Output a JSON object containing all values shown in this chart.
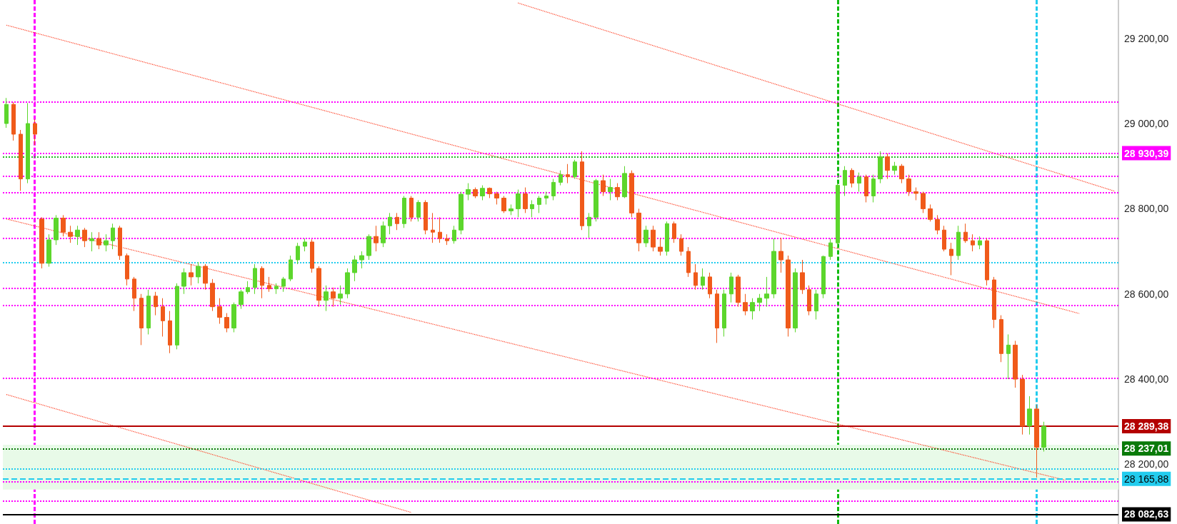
{
  "chart_data": {
    "type": "candlestick",
    "categories": [
      null,
      null,
      null,
      null,
      null,
      null,
      null,
      null,
      null,
      null,
      null,
      null,
      null,
      null,
      null,
      null,
      null,
      null,
      null,
      null,
      null,
      null,
      null,
      null,
      null,
      null,
      null,
      null,
      null,
      null,
      null,
      null,
      null,
      null,
      null,
      null,
      null,
      null,
      null,
      null,
      null,
      null,
      null,
      null,
      null,
      null,
      null,
      null,
      null,
      null,
      null,
      null,
      null,
      null,
      null,
      null,
      null,
      null,
      null,
      null,
      null,
      null,
      null,
      null,
      null,
      null,
      null,
      null,
      null,
      null,
      null,
      null,
      null,
      null,
      null,
      null,
      null,
      null,
      null,
      null,
      null,
      null,
      null,
      null,
      null,
      null,
      null,
      null,
      null,
      null,
      null,
      null,
      null,
      null,
      null,
      null,
      null,
      null,
      null,
      null,
      null,
      null,
      null,
      null,
      null,
      null,
      null,
      null,
      null,
      null,
      null,
      null,
      null,
      null,
      null,
      null,
      null,
      null,
      null,
      null,
      null,
      null,
      null,
      null,
      null,
      null,
      null,
      null,
      null,
      null,
      null,
      null,
      null,
      null,
      null,
      null,
      null,
      null,
      null,
      null,
      null,
      null,
      null,
      null,
      null,
      null,
      null,
      null,
      null,
      null,
      null,
      null,
      null,
      null,
      null,
      null,
      null
    ],
    "ohlc": [
      [
        29000,
        29060,
        28990,
        29045
      ],
      [
        29045,
        29050,
        28960,
        28975
      ],
      [
        28975,
        28985,
        28842,
        28870
      ],
      [
        28870,
        29048,
        28860,
        29000
      ],
      [
        29000,
        29010,
        28950,
        28975
      ],
      [
        28776,
        28780,
        28660,
        28672
      ],
      [
        28672,
        28740,
        28664,
        28727
      ],
      [
        28727,
        28785,
        28715,
        28778
      ],
      [
        28778,
        28785,
        28735,
        28745
      ],
      [
        28745,
        28760,
        28720,
        28735
      ],
      [
        28735,
        28760,
        28715,
        28750
      ],
      [
        28750,
        28755,
        28710,
        28725
      ],
      [
        28725,
        28745,
        28700,
        28730
      ],
      [
        28730,
        28745,
        28705,
        28715
      ],
      [
        28715,
        28740,
        28700,
        28725
      ],
      [
        28725,
        28765,
        28705,
        28755
      ],
      [
        28755,
        28760,
        28680,
        28690
      ],
      [
        28690,
        28695,
        28620,
        28635
      ],
      [
        28635,
        28640,
        28560,
        28590
      ],
      [
        28590,
        28600,
        28480,
        28520
      ],
      [
        28520,
        28610,
        28505,
        28595
      ],
      [
        28595,
        28605,
        28550,
        28570
      ],
      [
        28570,
        28590,
        28500,
        28537
      ],
      [
        28537,
        28560,
        28461,
        28480
      ],
      [
        28480,
        28625,
        28470,
        28618
      ],
      [
        28618,
        28660,
        28600,
        28650
      ],
      [
        28650,
        28670,
        28620,
        28640
      ],
      [
        28640,
        28675,
        28625,
        28665
      ],
      [
        28665,
        28670,
        28610,
        28625
      ],
      [
        28625,
        28635,
        28560,
        28570
      ],
      [
        28570,
        28590,
        28530,
        28545
      ],
      [
        28545,
        28555,
        28510,
        28520
      ],
      [
        28520,
        28580,
        28510,
        28575
      ],
      [
        28575,
        28610,
        28565,
        28605
      ],
      [
        28605,
        28630,
        28600,
        28615
      ],
      [
        28615,
        28670,
        28600,
        28660
      ],
      [
        28660,
        28665,
        28590,
        28620
      ],
      [
        28620,
        28640,
        28605,
        28612
      ],
      [
        28612,
        28625,
        28600,
        28618
      ],
      [
        28618,
        28640,
        28605,
        28635
      ],
      [
        28635,
        28690,
        28630,
        28680
      ],
      [
        28680,
        28720,
        28670,
        28712
      ],
      [
        28712,
        28730,
        28700,
        28722
      ],
      [
        28722,
        28728,
        28650,
        28660
      ],
      [
        28660,
        28665,
        28570,
        28585
      ],
      [
        28585,
        28620,
        28560,
        28605
      ],
      [
        28605,
        28615,
        28570,
        28590
      ],
      [
        28590,
        28620,
        28575,
        28600
      ],
      [
        28600,
        28660,
        28590,
        28650
      ],
      [
        28650,
        28690,
        28630,
        28680
      ],
      [
        28680,
        28700,
        28660,
        28690
      ],
      [
        28690,
        28740,
        28680,
        28735
      ],
      [
        28735,
        28760,
        28700,
        28720
      ],
      [
        28720,
        28770,
        28710,
        28760
      ],
      [
        28760,
        28790,
        28740,
        28780
      ],
      [
        28780,
        28790,
        28750,
        28765
      ],
      [
        28765,
        28830,
        28755,
        28825
      ],
      [
        28825,
        28830,
        28770,
        28780
      ],
      [
        28780,
        28820,
        28770,
        28815
      ],
      [
        28815,
        28820,
        28740,
        28750
      ],
      [
        28750,
        28790,
        28720,
        28745
      ],
      [
        28745,
        28780,
        28720,
        28730
      ],
      [
        28730,
        28740,
        28715,
        28725
      ],
      [
        28725,
        28760,
        28718,
        28750
      ],
      [
        28750,
        28840,
        28740,
        28834
      ],
      [
        28834,
        28860,
        28820,
        28845
      ],
      [
        28845,
        28850,
        28825,
        28830
      ],
      [
        28830,
        28855,
        28820,
        28848
      ],
      [
        28848,
        28850,
        28825,
        28835
      ],
      [
        28835,
        28840,
        28810,
        28825
      ],
      [
        28825,
        28830,
        28790,
        28795
      ],
      [
        28795,
        28810,
        28785,
        28800
      ],
      [
        28800,
        28845,
        28780,
        28835
      ],
      [
        28835,
        28850,
        28790,
        28800
      ],
      [
        28800,
        28820,
        28780,
        28810
      ],
      [
        28810,
        28830,
        28790,
        28825
      ],
      [
        28825,
        28840,
        28810,
        28830
      ],
      [
        28830,
        28870,
        28820,
        28862
      ],
      [
        28862,
        28890,
        28855,
        28880
      ],
      [
        28880,
        28905,
        28860,
        28875
      ],
      [
        28875,
        28915,
        28870,
        28910
      ],
      [
        28910,
        28935,
        28750,
        28760
      ],
      [
        28760,
        28790,
        28732,
        28780
      ],
      [
        28780,
        28870,
        28770,
        28866
      ],
      [
        28866,
        28880,
        28830,
        28840
      ],
      [
        28840,
        28870,
        28820,
        28850
      ],
      [
        28850,
        28860,
        28820,
        28828
      ],
      [
        28828,
        28900,
        28825,
        28883
      ],
      [
        28883,
        28890,
        28780,
        28790
      ],
      [
        28790,
        28800,
        28700,
        28720
      ],
      [
        28720,
        28760,
        28710,
        28750
      ],
      [
        28750,
        28760,
        28700,
        28710
      ],
      [
        28710,
        28730,
        28690,
        28700
      ],
      [
        28700,
        28770,
        28690,
        28765
      ],
      [
        28765,
        28770,
        28720,
        28730
      ],
      [
        28730,
        28740,
        28690,
        28700
      ],
      [
        28700,
        28710,
        28640,
        28650
      ],
      [
        28650,
        28670,
        28610,
        28620
      ],
      [
        28620,
        28660,
        28610,
        28640
      ],
      [
        28640,
        28650,
        28590,
        28600
      ],
      [
        28600,
        28610,
        28485,
        28520
      ],
      [
        28520,
        28610,
        28500,
        28600
      ],
      [
        28600,
        28650,
        28580,
        28640
      ],
      [
        28640,
        28645,
        28570,
        28580
      ],
      [
        28580,
        28600,
        28550,
        28560
      ],
      [
        28560,
        28590,
        28540,
        28580
      ],
      [
        28580,
        28600,
        28560,
        28590
      ],
      [
        28590,
        28640,
        28570,
        28600
      ],
      [
        28600,
        28730,
        28590,
        28700
      ],
      [
        28700,
        28732,
        28650,
        28680
      ],
      [
        28680,
        28690,
        28500,
        28520
      ],
      [
        28520,
        28660,
        28510,
        28650
      ],
      [
        28650,
        28680,
        28600,
        28610
      ],
      [
        28610,
        28620,
        28550,
        28560
      ],
      [
        28560,
        28610,
        28540,
        28600
      ],
      [
        28600,
        28690,
        28590,
        28688
      ],
      [
        28688,
        28730,
        28680,
        28720
      ],
      [
        28720,
        28860,
        28710,
        28855
      ],
      [
        28855,
        28900,
        28830,
        28890
      ],
      [
        28890,
        28895,
        28850,
        28860
      ],
      [
        28860,
        28885,
        28840,
        28875
      ],
      [
        28875,
        28880,
        28815,
        28830
      ],
      [
        28830,
        28880,
        28815,
        28870
      ],
      [
        28870,
        28935,
        28860,
        28922
      ],
      [
        28922,
        28930,
        28870,
        28890
      ],
      [
        28890,
        28910,
        28880,
        28900
      ],
      [
        28900,
        28905,
        28860,
        28870
      ],
      [
        28870,
        28880,
        28830,
        28840
      ],
      [
        28840,
        28850,
        28820,
        28836
      ],
      [
        28836,
        28840,
        28790,
        28800
      ],
      [
        28800,
        28810,
        28770,
        28775
      ],
      [
        28775,
        28785,
        28740,
        28750
      ],
      [
        28750,
        28760,
        28700,
        28705
      ],
      [
        28705,
        28720,
        28644,
        28690
      ],
      [
        28690,
        28760,
        28680,
        28745
      ],
      [
        28745,
        28765,
        28720,
        28725
      ],
      [
        28725,
        28740,
        28700,
        28715
      ],
      [
        28715,
        28735,
        28705,
        28725
      ],
      [
        28725,
        28730,
        28620,
        28633
      ],
      [
        28633,
        28640,
        28520,
        28540
      ],
      [
        28540,
        28550,
        28440,
        28460
      ],
      [
        28460,
        28505,
        28400,
        28480
      ],
      [
        28480,
        28490,
        28380,
        28400
      ],
      [
        28400,
        28410,
        28270,
        28290
      ],
      [
        28290,
        28360,
        28270,
        28330
      ],
      [
        28330,
        28340,
        28169,
        28240
      ],
      [
        28240,
        28300,
        28230,
        28289.38
      ],
      null,
      null,
      null,
      null,
      null,
      null,
      null,
      null,
      null,
      null
    ],
    "colors": [
      "#5cd62c",
      "#f05a1a",
      "#f05a1a",
      "#5cd62c",
      "#f05a1a",
      "#f05a1a",
      "#5cd62c",
      "#5cd62c",
      "#f05a1a",
      "#f05a1a",
      "#5cd62c",
      "#f05a1a",
      "#5cd62c",
      "#f05a1a",
      "#5cd62c",
      "#5cd62c",
      "#f05a1a",
      "#f05a1a",
      "#f05a1a",
      "#f05a1a",
      "#5cd62c",
      "#f05a1a",
      "#f05a1a",
      "#f05a1a",
      "#5cd62c",
      "#5cd62c",
      "#f05a1a",
      "#5cd62c",
      "#f05a1a",
      "#f05a1a",
      "#f05a1a",
      "#f05a1a",
      "#5cd62c",
      "#5cd62c",
      "#5cd62c",
      "#5cd62c",
      "#f05a1a",
      "#f05a1a",
      "#5cd62c",
      "#5cd62c",
      "#5cd62c",
      "#5cd62c",
      "#5cd62c",
      "#f05a1a",
      "#f05a1a",
      "#5cd62c",
      "#f05a1a",
      "#5cd62c",
      "#5cd62c",
      "#5cd62c",
      "#5cd62c",
      "#5cd62c",
      "#f05a1a",
      "#5cd62c",
      "#5cd62c",
      "#f05a1a",
      "#5cd62c",
      "#f05a1a",
      "#5cd62c",
      "#f05a1a",
      "#f05a1a",
      "#f05a1a",
      "#f05a1a",
      "#5cd62c",
      "#5cd62c",
      "#5cd62c",
      "#f05a1a",
      "#5cd62c",
      "#f05a1a",
      "#f05a1a",
      "#f05a1a",
      "#5cd62c",
      "#5cd62c",
      "#f05a1a",
      "#5cd62c",
      "#5cd62c",
      "#5cd62c",
      "#5cd62c",
      "#5cd62c",
      "#f05a1a",
      "#5cd62c",
      "#f05a1a",
      "#5cd62c",
      "#5cd62c",
      "#f05a1a",
      "#5cd62c",
      "#f05a1a",
      "#5cd62c",
      "#f05a1a",
      "#f05a1a",
      "#5cd62c",
      "#f05a1a",
      "#f05a1a",
      "#5cd62c",
      "#f05a1a",
      "#f05a1a",
      "#f05a1a",
      "#f05a1a",
      "#5cd62c",
      "#f05a1a",
      "#f05a1a",
      "#5cd62c",
      "#5cd62c",
      "#f05a1a",
      "#f05a1a",
      "#5cd62c",
      "#5cd62c",
      "#5cd62c",
      "#5cd62c",
      "#f05a1a",
      "#f05a1a",
      "#5cd62c",
      "#f05a1a",
      "#f05a1a",
      "#5cd62c",
      "#5cd62c",
      "#5cd62c",
      "#5cd62c",
      "#5cd62c",
      "#f05a1a",
      "#5cd62c",
      "#f05a1a",
      "#5cd62c",
      "#5cd62c",
      "#f05a1a",
      "#5cd62c",
      "#f05a1a",
      "#f05a1a",
      "#f05a1a",
      "#f05a1a",
      "#f05a1a",
      "#f05a1a",
      "#f05a1a",
      "#f05a1a",
      "#5cd62c",
      "#f05a1a",
      "#f05a1a",
      "#5cd62c",
      "#f05a1a",
      "#f05a1a",
      "#f05a1a",
      "#5cd62c",
      "#f05a1a",
      "#f05a1a",
      "#5cd62c",
      "#f05a1a",
      "#5cd62c",
      null,
      null,
      null,
      null,
      null,
      null,
      null,
      null,
      null,
      null
    ],
    "ylim": [
      28060,
      29290
    ],
    "yticks": [
      {
        "value": 28200,
        "label": "28 200,00"
      },
      {
        "value": 28400,
        "label": "28 400,00"
      },
      {
        "value": 28600,
        "label": "28 600,00"
      },
      {
        "value": 28800,
        "label": "28 800,00"
      },
      {
        "value": 29000,
        "label": "29 000,00"
      },
      {
        "value": 29200,
        "label": "29 200,00"
      }
    ],
    "tick_labels": "y",
    "grid": false,
    "series": [
      {
        "type": "line",
        "color": "#ff3b1f",
        "line_style": "dotted",
        "values": [
          null,
          null,
          null,
          null,
          null,
          null,
          null,
          null,
          null,
          null,
          null,
          null,
          null,
          null,
          null,
          null,
          null,
          null,
          null,
          null,
          null,
          null,
          null,
          null,
          null,
          null,
          null,
          null,
          null,
          null,
          null,
          null,
          null,
          null,
          null,
          null,
          null,
          null,
          null,
          null,
          null,
          null,
          null,
          null,
          null,
          null,
          null,
          null,
          null,
          null,
          null,
          null,
          null,
          null,
          null,
          null,
          null,
          null,
          null,
          null,
          null,
          null,
          null,
          null,
          null,
          null,
          null,
          null,
          null,
          null,
          null,
          null,
          29283,
          null,
          null,
          null,
          null,
          null,
          null,
          null,
          null,
          null,
          null,
          null,
          null,
          null,
          null,
          null,
          null,
          null,
          null,
          null,
          null,
          null,
          null,
          null,
          null,
          null,
          null,
          null,
          null,
          null,
          null,
          null,
          null,
          null,
          null,
          null,
          null,
          null,
          null,
          null,
          null,
          null,
          null,
          null,
          null,
          null,
          null,
          null,
          null,
          null,
          null,
          null,
          null,
          null,
          null,
          null,
          null,
          null,
          null,
          null,
          null,
          null,
          null,
          null,
          null,
          null,
          null,
          null,
          null,
          null,
          null,
          null,
          null,
          null,
          null,
          null,
          null,
          null,
          null,
          null,
          null,
          null,
          null,
          null,
          28841
        ]
      },
      {
        "type": "line",
        "color": "#ff3b1f",
        "line_style": "dotted",
        "values": [
          29231,
          null,
          null,
          null,
          null,
          null,
          null,
          null,
          null,
          null,
          null,
          null,
          null,
          null,
          null,
          null,
          null,
          null,
          null,
          null,
          null,
          null,
          null,
          null,
          null,
          null,
          null,
          null,
          null,
          null,
          null,
          null,
          null,
          null,
          null,
          null,
          null,
          null,
          null,
          null,
          null,
          null,
          null,
          null,
          null,
          null,
          null,
          null,
          null,
          null,
          null,
          null,
          null,
          null,
          null,
          null,
          null,
          null,
          null,
          null,
          null,
          null,
          null,
          null,
          null,
          null,
          null,
          null,
          null,
          null,
          null,
          null,
          null,
          null,
          null,
          null,
          null,
          null,
          null,
          null,
          null,
          null,
          null,
          null,
          null,
          null,
          null,
          null,
          null,
          null,
          null,
          null,
          null,
          null,
          null,
          null,
          null,
          null,
          null,
          null,
          null,
          null,
          null,
          null,
          null,
          null,
          null,
          null,
          null,
          null,
          null,
          null,
          null,
          null,
          null,
          null,
          null,
          null,
          null,
          null,
          null,
          null,
          null,
          null,
          null,
          null,
          null,
          null,
          null,
          null,
          null,
          null,
          null,
          null,
          null,
          null,
          null,
          null,
          null,
          null,
          null,
          null,
          null,
          null,
          null,
          null,
          null,
          null,
          null,
          null,
          null,
          28554,
          null,
          null,
          null,
          null,
          null
        ]
      },
      {
        "type": "line",
        "color": "#ff3b1f",
        "line_style": "dotted",
        "values": [
          28776,
          null,
          null,
          null,
          null,
          null,
          null,
          null,
          null,
          null,
          null,
          null,
          null,
          null,
          null,
          null,
          null,
          null,
          null,
          null,
          null,
          null,
          null,
          null,
          null,
          null,
          null,
          null,
          null,
          null,
          null,
          null,
          null,
          null,
          null,
          null,
          null,
          null,
          null,
          null,
          null,
          null,
          null,
          null,
          null,
          null,
          null,
          null,
          null,
          null,
          null,
          null,
          null,
          null,
          null,
          null,
          null,
          null,
          null,
          null,
          null,
          null,
          null,
          null,
          null,
          null,
          null,
          null,
          null,
          null,
          null,
          null,
          null,
          null,
          null,
          null,
          null,
          null,
          null,
          null,
          null,
          null,
          null,
          null,
          null,
          null,
          null,
          null,
          null,
          null,
          null,
          null,
          null,
          null,
          null,
          null,
          null,
          null,
          null,
          null,
          null,
          null,
          null,
          null,
          null,
          null,
          null,
          null,
          null,
          null,
          null,
          null,
          null,
          null,
          null,
          null,
          null,
          null,
          null,
          null,
          null,
          null,
          null,
          null,
          null,
          null,
          null,
          null,
          null,
          null,
          null,
          null,
          null,
          null,
          null,
          null,
          null,
          null,
          null,
          null,
          null,
          null,
          null,
          null,
          null,
          null,
          null,
          null,
          null,
          28163,
          null,
          null,
          null,
          null,
          null,
          null,
          null
        ]
      },
      {
        "type": "line",
        "color": "#ff3b1f",
        "line_style": "dotted",
        "values": [
          28364,
          null,
          null,
          null,
          null,
          null,
          null,
          null,
          null,
          null,
          null,
          null,
          null,
          null,
          null,
          null,
          null,
          null,
          null,
          null,
          null,
          null,
          null,
          null,
          null,
          null,
          null,
          null,
          null,
          null,
          null,
          null,
          null,
          null,
          null,
          null,
          null,
          null,
          null,
          null,
          null,
          null,
          null,
          null,
          null,
          null,
          null,
          null,
          null,
          null,
          null,
          null,
          null,
          null,
          null,
          null,
          null,
          28087,
          null,
          null,
          null,
          null,
          null,
          null,
          null,
          null,
          null,
          null,
          null,
          null,
          null,
          null,
          null,
          null,
          null,
          null,
          null,
          null,
          null,
          null,
          null,
          null,
          null,
          null,
          null,
          null,
          null,
          null,
          null,
          null,
          null,
          null,
          null,
          null,
          null,
          null,
          null,
          null,
          null,
          null,
          null,
          null,
          null,
          null,
          null,
          null,
          null,
          null,
          null,
          null,
          null,
          null,
          null,
          null,
          null,
          null,
          null,
          null,
          null,
          null,
          null,
          null,
          null,
          null,
          null,
          null,
          null,
          null,
          null,
          null,
          null,
          null,
          null,
          null,
          null,
          null,
          null,
          null,
          null,
          null,
          null,
          null,
          null,
          null,
          null,
          null,
          null,
          null,
          null,
          null,
          null,
          null,
          null,
          null,
          null,
          null,
          null
        ]
      }
    ],
    "bands": [
      {
        "axis": "y",
        "from": 28141,
        "to": 28246,
        "color": "#e8fae8"
      }
    ],
    "ref_lines": [
      {
        "axis": "y",
        "value": 29050,
        "color": "#ff00ff",
        "line_style": "dotted"
      },
      {
        "axis": "y",
        "value": 28930.39,
        "label": "28 930,39",
        "color": "#ff00ff",
        "line_style": "dotted"
      },
      {
        "axis": "y",
        "value": 28922,
        "color": "#22bb22",
        "line_style": "dotted"
      },
      {
        "axis": "y",
        "value": 28877,
        "color": "#ff00ff",
        "line_style": "dotted"
      },
      {
        "axis": "y",
        "value": 28838,
        "color": "#ff00ff",
        "line_style": "dotted"
      },
      {
        "axis": "y",
        "value": 28777,
        "color": "#ff00ff",
        "line_style": "dotted"
      },
      {
        "axis": "y",
        "value": 28731,
        "color": "#ff00ff",
        "line_style": "dotted"
      },
      {
        "axis": "y",
        "value": 28673,
        "color": "#22ccee",
        "line_style": "dotted"
      },
      {
        "axis": "y",
        "value": 28613,
        "color": "#ff00ff",
        "line_style": "dotted"
      },
      {
        "axis": "y",
        "value": 28573,
        "color": "#ff00ff",
        "line_style": "dotted"
      },
      {
        "axis": "y",
        "value": 28402,
        "color": "#ff00ff",
        "line_style": "dotted"
      },
      {
        "axis": "y",
        "value": 28289.38,
        "label": "28 289,38",
        "color": "#b40000",
        "line_style": "solid"
      },
      {
        "axis": "y",
        "value": 28237.01,
        "label": "28 237,01",
        "color": "#0a7a0a",
        "line_style": "dotted"
      },
      {
        "axis": "y",
        "value": 28190,
        "color": "#22ccee",
        "line_style": "dotted"
      },
      {
        "axis": "y",
        "value": 28165.88,
        "label": "28 165,88",
        "color": "#22ccee",
        "line_style": "dashed"
      },
      {
        "axis": "y",
        "value": 28160,
        "color": "#ff00ff",
        "line_style": "dotted"
      },
      {
        "axis": "y",
        "value": 28114,
        "color": "#ff00ff",
        "line_style": "dotted"
      },
      {
        "axis": "y",
        "value": 28082.63,
        "label": "28 082,63",
        "color": "#000000",
        "line_style": "solid"
      }
    ]
  }
}
